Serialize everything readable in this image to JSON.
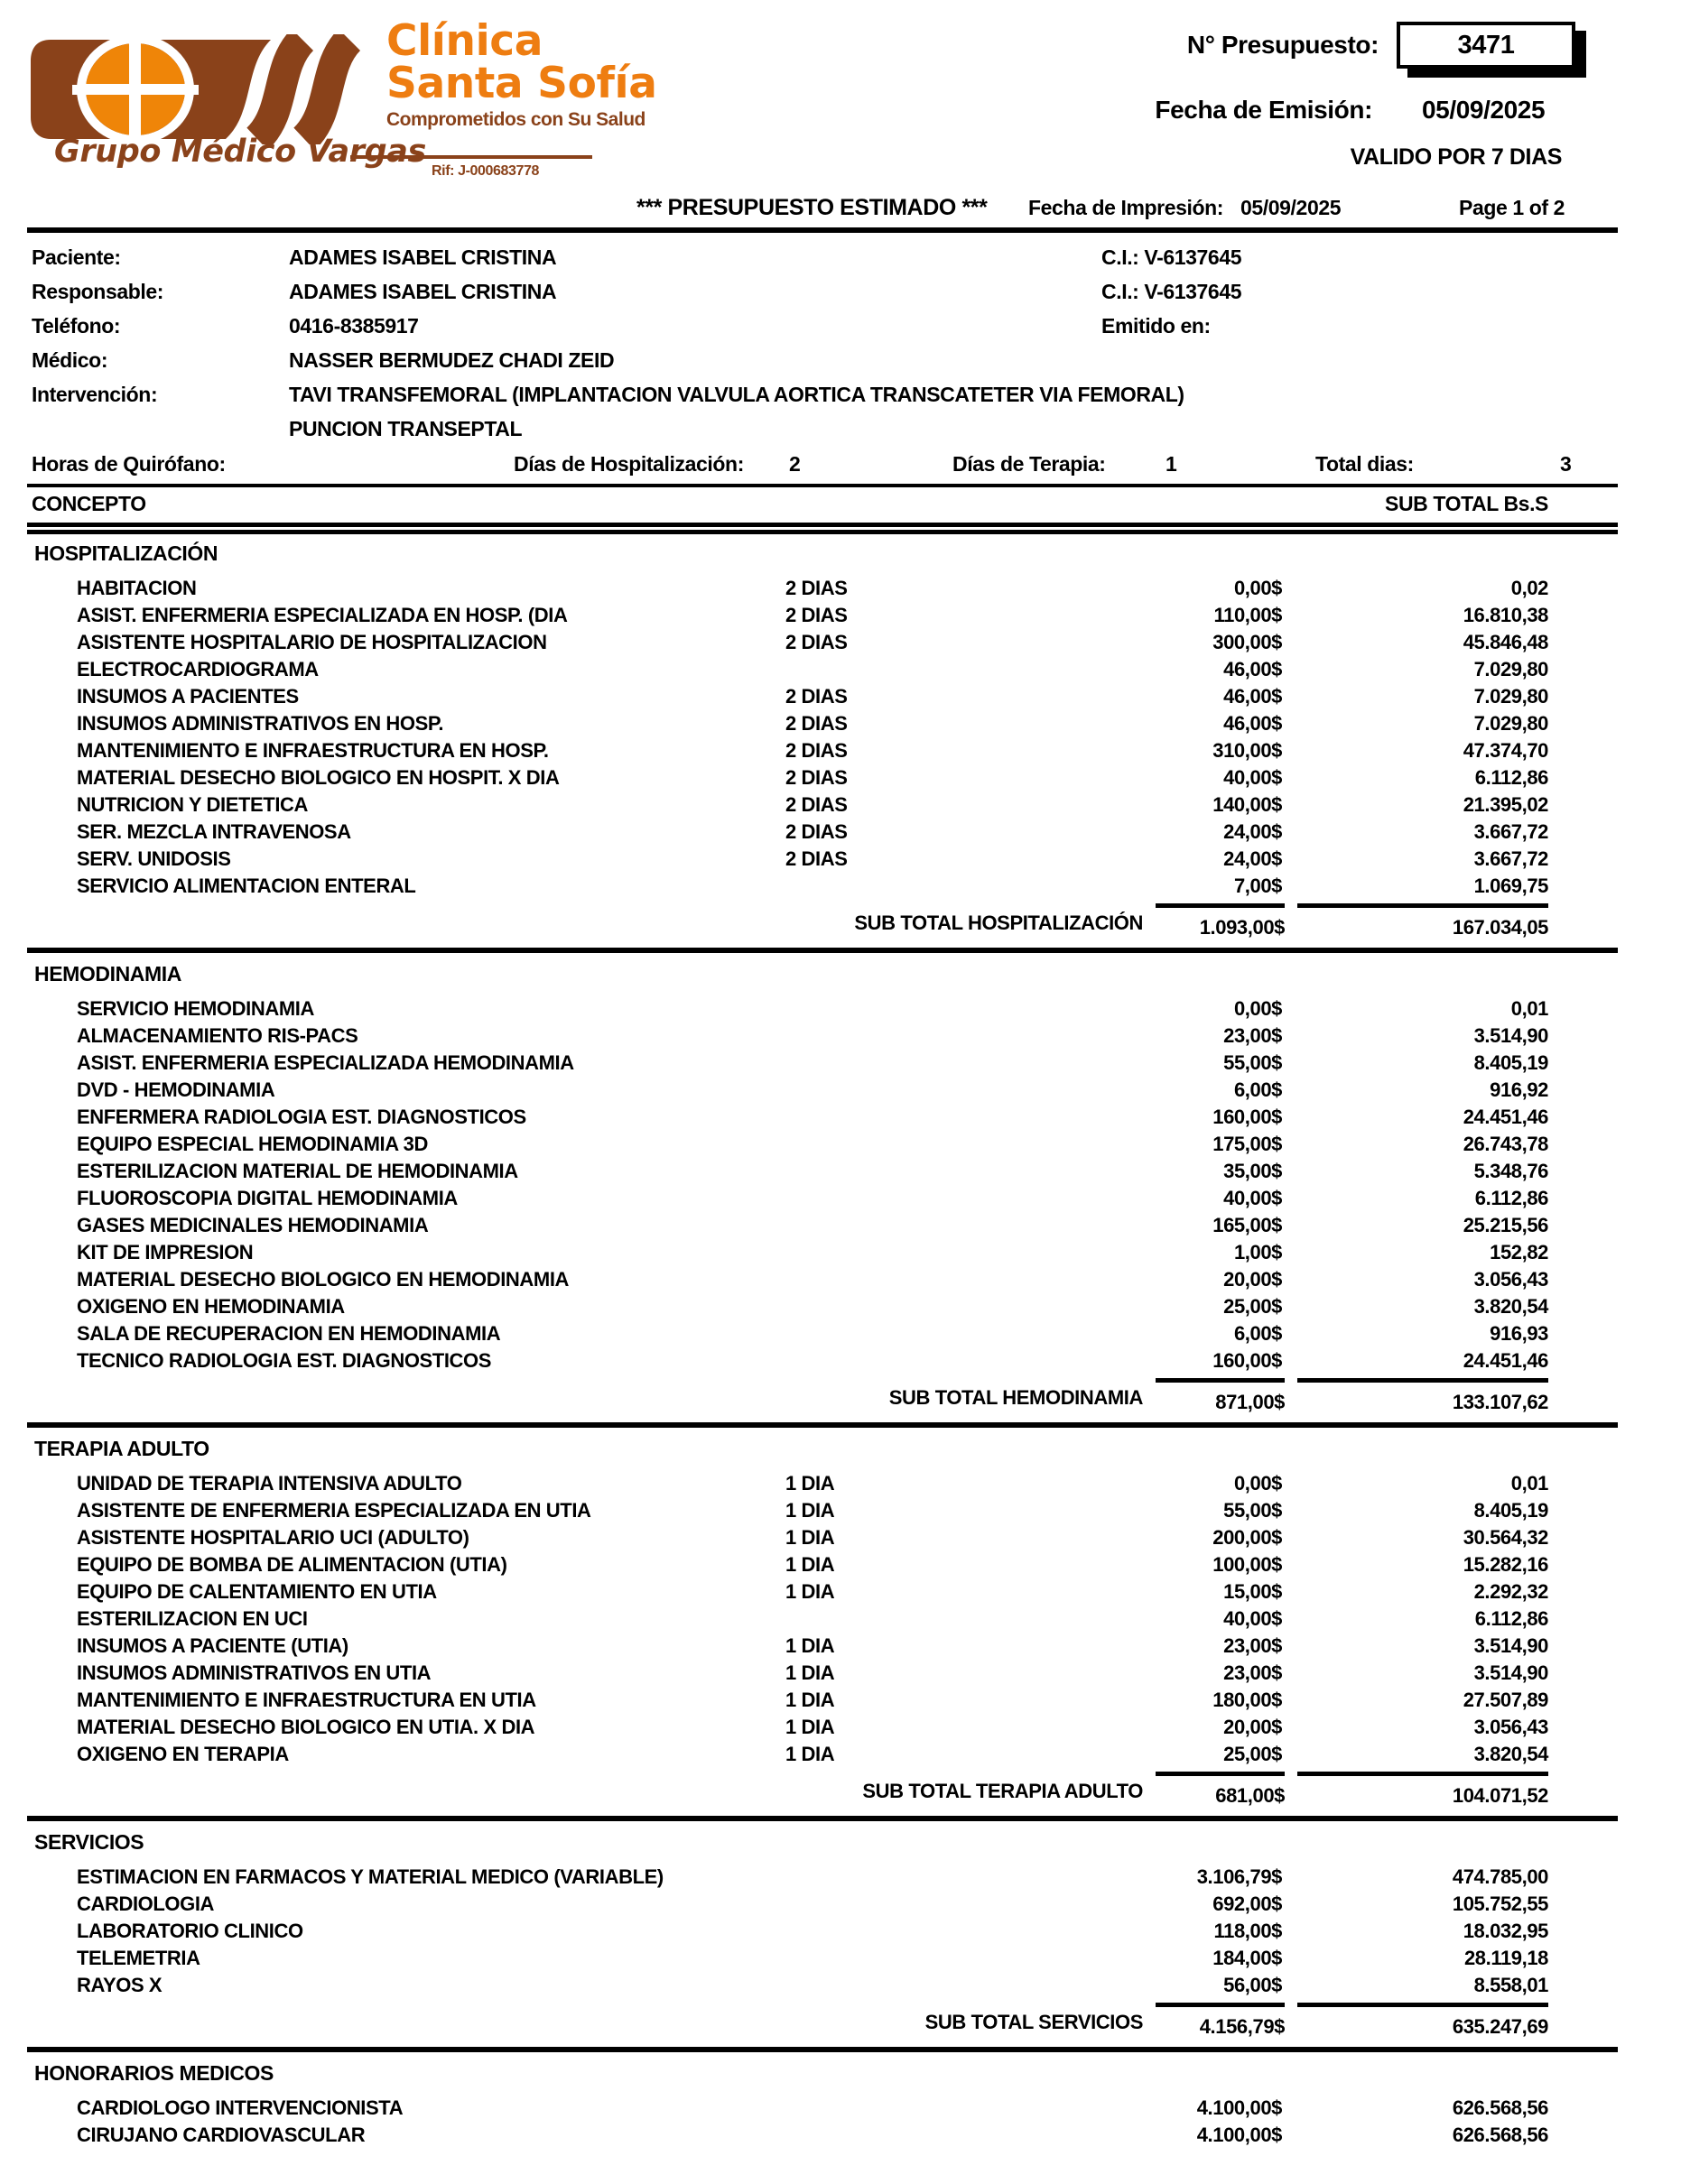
{
  "logo": {
    "name_line1": "Clínica",
    "name_line2": "Santa Sofía",
    "tagline": "Comprometidos con Su Salud",
    "group": "Grupo Médico Vargas",
    "rif": "Rif: J-000683778",
    "brand_brown": "#8a421a",
    "brand_orange": "#ee7d11"
  },
  "header": {
    "budget_label": "N° Presupuesto:",
    "budget_number": "3471",
    "emission_label": "Fecha de Emisión:",
    "emission_date": "05/09/2025",
    "validity": "VALIDO POR 7 DIAS",
    "title": "*** PRESUPUESTO ESTIMADO ***",
    "print_label": "Fecha de Impresión:",
    "print_date": "05/09/2025",
    "page": "Page 1 of 2"
  },
  "patient": {
    "paciente_label": "Paciente:",
    "paciente": "ADAMES ISABEL CRISTINA",
    "paciente_ci": "C.I.: V-6137645",
    "responsable_label": "Responsable:",
    "responsable": "ADAMES ISABEL CRISTINA",
    "responsable_ci": "C.I.: V-6137645",
    "telefono_label": "Teléfono:",
    "telefono": "0416-8385917",
    "emitido_label": "Emitido en:",
    "medico_label": "Médico:",
    "medico": "NASSER BERMUDEZ CHADI ZEID",
    "intervencion_label": "Intervención:",
    "intervencion_1": "TAVI TRANSFEMORAL (IMPLANTACION VALVULA AORTICA TRANSCATETER VIA FEMORAL)",
    "intervencion_2": "PUNCION TRANSEPTAL"
  },
  "summary": {
    "horas_label": "Horas de Quirófano:",
    "hosp_label": "Días de Hospitalización:",
    "hosp_value": "2",
    "terapia_label": "Días de Terapia:",
    "terapia_value": "1",
    "total_label": "Total dias:",
    "total_value": "3"
  },
  "table": {
    "concept_header": "CONCEPTO",
    "subtotal_header": "SUB TOTAL Bs.S",
    "sections": [
      {
        "name": "HOSPITALIZACIÓN",
        "items": [
          {
            "concept": "HABITACION",
            "days": "2 DIAS",
            "price": "0,00$",
            "amount": "0,02"
          },
          {
            "concept": "ASIST. ENFERMERIA ESPECIALIZADA EN HOSP. (DIA",
            "days": "2 DIAS",
            "price": "110,00$",
            "amount": "16.810,38"
          },
          {
            "concept": "ASISTENTE HOSPITALARIO DE HOSPITALIZACION",
            "days": "2 DIAS",
            "price": "300,00$",
            "amount": "45.846,48"
          },
          {
            "concept": "ELECTROCARDIOGRAMA",
            "days": "",
            "price": "46,00$",
            "amount": "7.029,80"
          },
          {
            "concept": "INSUMOS A PACIENTES",
            "days": "2 DIAS",
            "price": "46,00$",
            "amount": "7.029,80"
          },
          {
            "concept": "INSUMOS ADMINISTRATIVOS EN HOSP.",
            "days": "2 DIAS",
            "price": "46,00$",
            "amount": "7.029,80"
          },
          {
            "concept": "MANTENIMIENTO E INFRAESTRUCTURA EN HOSP.",
            "days": "2 DIAS",
            "price": "310,00$",
            "amount": "47.374,70"
          },
          {
            "concept": "MATERIAL DESECHO BIOLOGICO EN HOSPIT. X DIA",
            "days": "2 DIAS",
            "price": "40,00$",
            "amount": "6.112,86"
          },
          {
            "concept": "NUTRICION Y DIETETICA",
            "days": "2 DIAS",
            "price": "140,00$",
            "amount": "21.395,02"
          },
          {
            "concept": "SER. MEZCLA INTRAVENOSA",
            "days": "2 DIAS",
            "price": "24,00$",
            "amount": "3.667,72"
          },
          {
            "concept": "SERV. UNIDOSIS",
            "days": "2 DIAS",
            "price": "24,00$",
            "amount": "3.667,72"
          },
          {
            "concept": "SERVICIO ALIMENTACION ENTERAL",
            "days": "",
            "price": "7,00$",
            "amount": "1.069,75"
          }
        ],
        "subtotal_label": "SUB TOTAL HOSPITALIZACIÓN",
        "subtotal_price": "1.093,00$",
        "subtotal_amount": "167.034,05"
      },
      {
        "name": "HEMODINAMIA",
        "items": [
          {
            "concept": "SERVICIO HEMODINAMIA",
            "days": "",
            "price": "0,00$",
            "amount": "0,01"
          },
          {
            "concept": "ALMACENAMIENTO RIS-PACS",
            "days": "",
            "price": "23,00$",
            "amount": "3.514,90"
          },
          {
            "concept": "ASIST. ENFERMERIA ESPECIALIZADA HEMODINAMIA",
            "days": "",
            "price": "55,00$",
            "amount": "8.405,19"
          },
          {
            "concept": "DVD - HEMODINAMIA",
            "days": "",
            "price": "6,00$",
            "amount": "916,92"
          },
          {
            "concept": "ENFERMERA RADIOLOGIA EST. DIAGNOSTICOS",
            "days": "",
            "price": "160,00$",
            "amount": "24.451,46"
          },
          {
            "concept": "EQUIPO ESPECIAL HEMODINAMIA 3D",
            "days": "",
            "price": "175,00$",
            "amount": "26.743,78"
          },
          {
            "concept": "ESTERILIZACION MATERIAL DE HEMODINAMIA",
            "days": "",
            "price": "35,00$",
            "amount": "5.348,76"
          },
          {
            "concept": "FLUOROSCOPIA DIGITAL HEMODINAMIA",
            "days": "",
            "price": "40,00$",
            "amount": "6.112,86"
          },
          {
            "concept": "GASES MEDICINALES HEMODINAMIA",
            "days": "",
            "price": "165,00$",
            "amount": "25.215,56"
          },
          {
            "concept": "KIT DE IMPRESION",
            "days": "",
            "price": "1,00$",
            "amount": "152,82"
          },
          {
            "concept": "MATERIAL DESECHO BIOLOGICO EN HEMODINAMIA",
            "days": "",
            "price": "20,00$",
            "amount": "3.056,43"
          },
          {
            "concept": "OXIGENO EN HEMODINAMIA",
            "days": "",
            "price": "25,00$",
            "amount": "3.820,54"
          },
          {
            "concept": "SALA DE RECUPERACION EN HEMODINAMIA",
            "days": "",
            "price": "6,00$",
            "amount": "916,93"
          },
          {
            "concept": "TECNICO RADIOLOGIA EST. DIAGNOSTICOS",
            "days": "",
            "price": "160,00$",
            "amount": "24.451,46"
          }
        ],
        "subtotal_label": "SUB TOTAL HEMODINAMIA",
        "subtotal_price": "871,00$",
        "subtotal_amount": "133.107,62"
      },
      {
        "name": "TERAPIA ADULTO",
        "items": [
          {
            "concept": "UNIDAD DE TERAPIA INTENSIVA ADULTO",
            "days": "1 DIA",
            "price": "0,00$",
            "amount": "0,01"
          },
          {
            "concept": "ASISTENTE DE ENFERMERIA ESPECIALIZADA EN UTIA",
            "days": "1 DIA",
            "price": "55,00$",
            "amount": "8.405,19"
          },
          {
            "concept": "ASISTENTE HOSPITALARIO UCI (ADULTO)",
            "days": "1 DIA",
            "price": "200,00$",
            "amount": "30.564,32"
          },
          {
            "concept": "EQUIPO DE BOMBA DE ALIMENTACION (UTIA)",
            "days": "1 DIA",
            "price": "100,00$",
            "amount": "15.282,16"
          },
          {
            "concept": "EQUIPO DE CALENTAMIENTO EN UTIA",
            "days": "1 DIA",
            "price": "15,00$",
            "amount": "2.292,32"
          },
          {
            "concept": "ESTERILIZACION EN UCI",
            "days": "",
            "price": "40,00$",
            "amount": "6.112,86"
          },
          {
            "concept": "INSUMOS A PACIENTE (UTIA)",
            "days": "1 DIA",
            "price": "23,00$",
            "amount": "3.514,90"
          },
          {
            "concept": "INSUMOS ADMINISTRATIVOS EN UTIA",
            "days": "1 DIA",
            "price": "23,00$",
            "amount": "3.514,90"
          },
          {
            "concept": "MANTENIMIENTO E INFRAESTRUCTURA EN UTIA",
            "days": "1 DIA",
            "price": "180,00$",
            "amount": "27.507,89"
          },
          {
            "concept": "MATERIAL DESECHO BIOLOGICO EN UTIA. X DIA",
            "days": "1 DIA",
            "price": "20,00$",
            "amount": "3.056,43"
          },
          {
            "concept": "OXIGENO EN TERAPIA",
            "days": "1 DIA",
            "price": "25,00$",
            "amount": "3.820,54"
          }
        ],
        "subtotal_label": "SUB TOTAL TERAPIA ADULTO",
        "subtotal_price": "681,00$",
        "subtotal_amount": "104.071,52"
      },
      {
        "name": "SERVICIOS",
        "items": [
          {
            "concept": "ESTIMACION EN FARMACOS Y MATERIAL MEDICO (VARIABLE)",
            "days": "",
            "price": "3.106,79$",
            "amount": "474.785,00"
          },
          {
            "concept": "CARDIOLOGIA",
            "days": "",
            "price": "692,00$",
            "amount": "105.752,55"
          },
          {
            "concept": "LABORATORIO CLINICO",
            "days": "",
            "price": "118,00$",
            "amount": "18.032,95"
          },
          {
            "concept": "TELEMETRIA",
            "days": "",
            "price": "184,00$",
            "amount": "28.119,18"
          },
          {
            "concept": "RAYOS X",
            "days": "",
            "price": "56,00$",
            "amount": "8.558,01"
          }
        ],
        "subtotal_label": "SUB TOTAL SERVICIOS",
        "subtotal_price": "4.156,79$",
        "subtotal_amount": "635.247,69"
      },
      {
        "name": "HONORARIOS MEDICOS",
        "items": [
          {
            "concept": "CARDIOLOGO INTERVENCIONISTA",
            "days": "",
            "price": "4.100,00$",
            "amount": "626.568,56"
          },
          {
            "concept": "CIRUJANO CARDIOVASCULAR",
            "days": "",
            "price": "4.100,00$",
            "amount": "626.568,56"
          }
        ]
      }
    ]
  }
}
